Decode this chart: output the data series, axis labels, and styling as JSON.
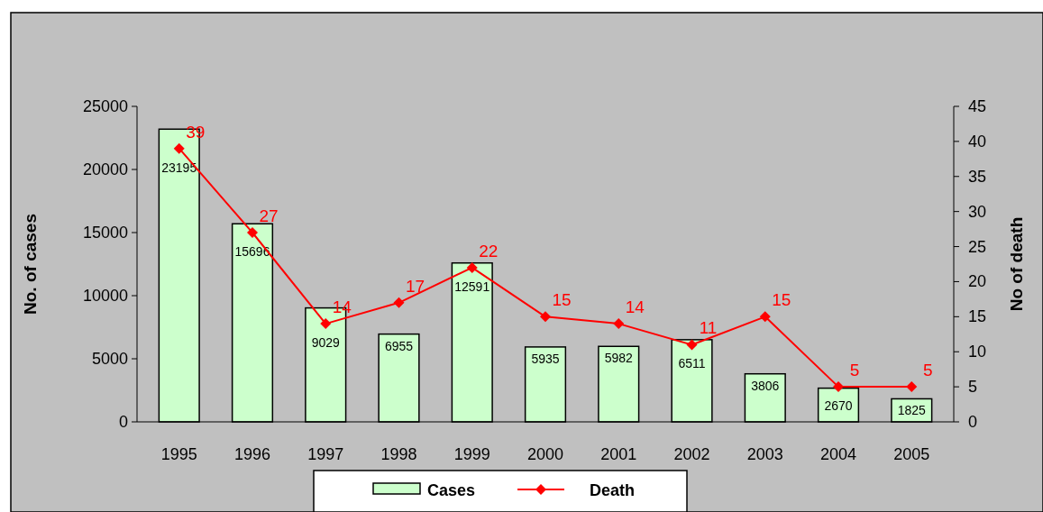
{
  "chart_data": {
    "type": "bar",
    "categories": [
      "1995",
      "1996",
      "1997",
      "1998",
      "1999",
      "2000",
      "2001",
      "2002",
      "2003",
      "2004",
      "2005"
    ],
    "series": [
      {
        "name": "Cases",
        "color": "#ccffcc",
        "values": [
          23195,
          15696,
          9029,
          6955,
          12591,
          5935,
          5982,
          6511,
          3806,
          2670,
          1825
        ]
      },
      {
        "name": "Death",
        "type": "line",
        "axis": "y2",
        "color": "#ff0000",
        "values": [
          39,
          27,
          14,
          17,
          22,
          15,
          14,
          11,
          15,
          5,
          5
        ]
      }
    ],
    "ylabel": "No. of cases",
    "y2label": "No of death",
    "ylim": [
      0,
      25000
    ],
    "yticks": [
      0,
      5000,
      10000,
      15000,
      20000,
      25000
    ],
    "y2lim": [
      0,
      45
    ],
    "y2ticks": [
      0,
      5,
      10,
      15,
      20,
      25,
      30,
      35,
      40,
      45
    ],
    "data_labels": true,
    "legend": "bottom",
    "marker": "diamond",
    "grid": false
  }
}
